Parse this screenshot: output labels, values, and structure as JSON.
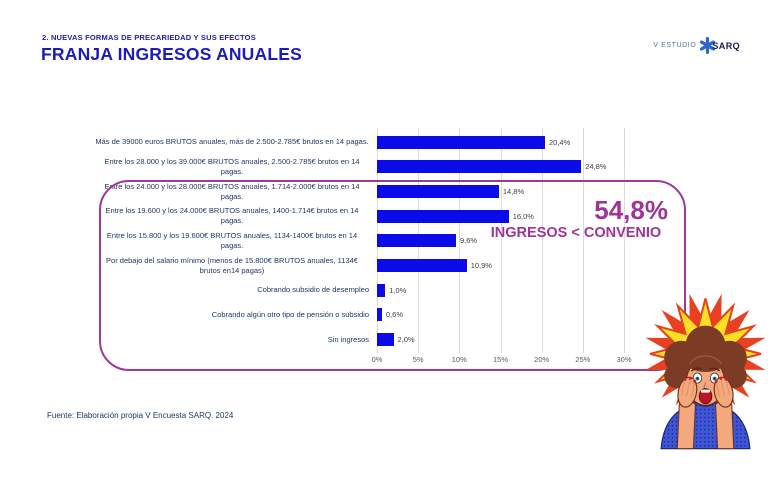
{
  "header": {
    "kicker": "2. NUEVAS FORMAS DE PRECARIEDAD Y SUS EFECTOS",
    "title": "FRANJA INGRESOS ANUALES"
  },
  "logo": {
    "prefix": "V ESTUDIO",
    "brand": "SARQ",
    "star_icon": "asterisk-star-icon",
    "star_color": "#2d66cc"
  },
  "chart_data": {
    "type": "bar",
    "orientation": "horizontal",
    "title": "FRANJA INGRESOS ANUALES",
    "categories": [
      "Más de 39000 euros BRUTOS anuales, más de 2.500-2.785€ brutos en 14 pagas.",
      "Entre los 28.000 y los 39.000€ BRUTOS anuales, 2.500-2.785€ brutos en 14 pagas.",
      "Entre los 24.000 y los 28.000€ BRUTOS anuales, 1.714-2.000€ brutos en 14 pagas.",
      "Entre los 19.600 y los 24.000€ BRUTOS anuales, 1400-1.714€ brutos en 14 pagas.",
      "Entre los 15.800 y los 19.600€ BRUTOS anuales, 1134-1400€ brutos en 14 pagas.",
      "Por debajo del salario mínimo (menos de 15.800€ BRUTOS anuales, 1134€ brutos en14 pagas)",
      "Cobrando subsidio de desempleo",
      "Cobrando algún otro tipo de pensión o subsidio",
      "Sin ingresos"
    ],
    "values": [
      20.4,
      24.8,
      14.8,
      16.0,
      9.6,
      10.9,
      1.0,
      0.6,
      2.0
    ],
    "value_labels": [
      "20,4%",
      "24,8%",
      "14,8%",
      "16,0%",
      "9,6%",
      "10,9%",
      "1,0%",
      "0,6%",
      "2,0%"
    ],
    "x_ticks": [
      "0%",
      "5%",
      "10%",
      "15%",
      "20%",
      "25%",
      "30%"
    ],
    "xlim": [
      0,
      30
    ],
    "grid": "vertical",
    "legend": "none",
    "bar_color": "#0b0be9"
  },
  "annotation": {
    "big": "54,8%",
    "caption": "INGRESOS < CONVENIO",
    "color": "#a03398",
    "box_color": "#9d3a97",
    "box_rows_enclosed": [
      3,
      4,
      5,
      6,
      7,
      8,
      9
    ]
  },
  "footer": {
    "source": "Fuente: Elaboración propia V Encuesta SARQ. 2024"
  },
  "illustration": {
    "name": "shocked-woman-popart",
    "starburst_colors": [
      "#ffdf26",
      "#e8411f"
    ]
  },
  "colors": {
    "title_blue": "#1b1bbe",
    "label_navy": "#1f3864",
    "bar_blue": "#0b0be9",
    "highlight_purple": "#9d3a97",
    "annotation_magenta": "#a03398"
  }
}
